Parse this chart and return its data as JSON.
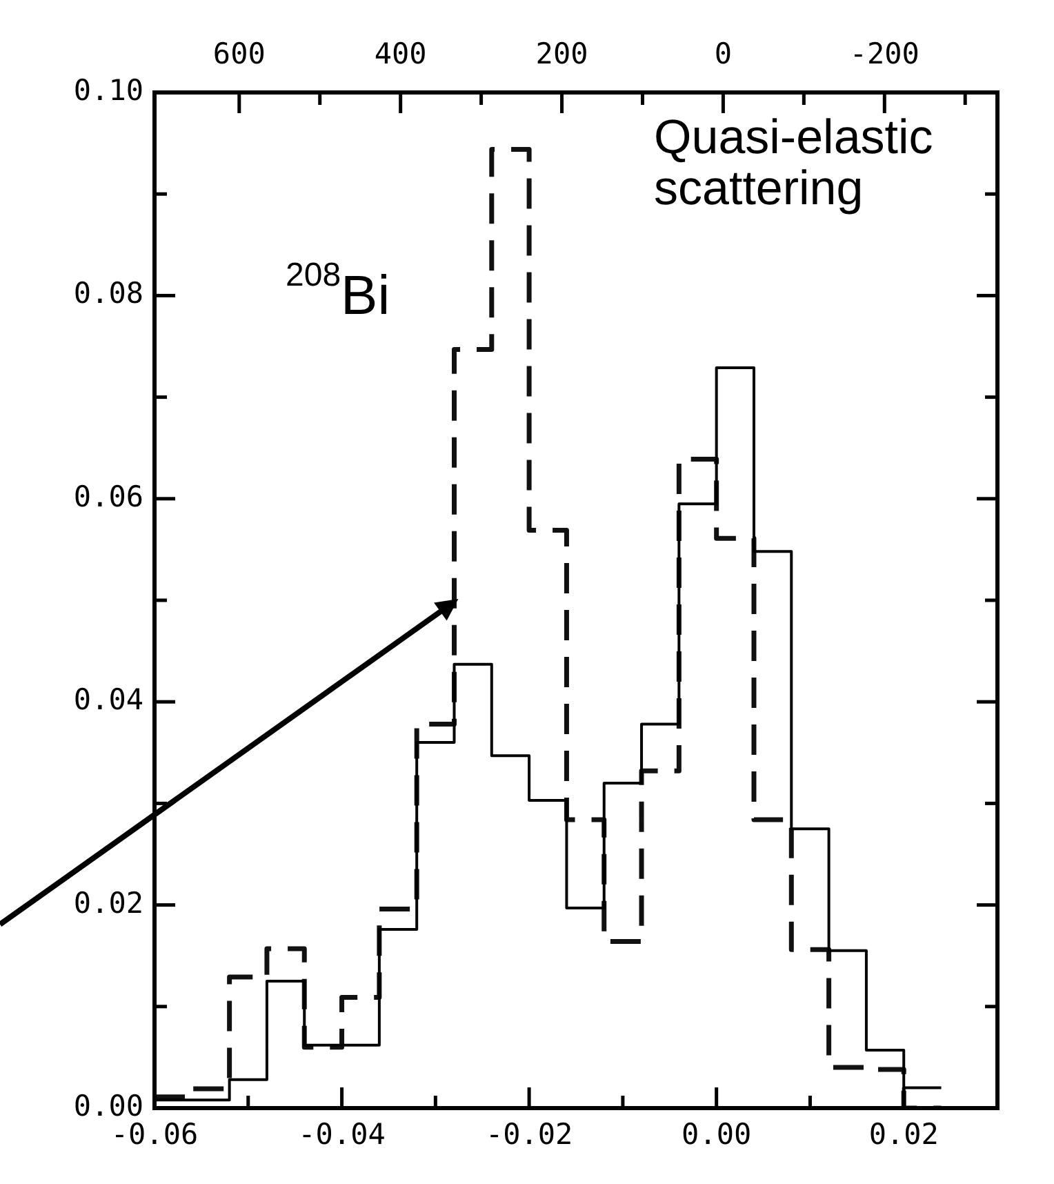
{
  "chart_data": {
    "type": "histogram",
    "bins": [
      -0.06,
      -0.056,
      -0.052,
      -0.048,
      -0.044,
      -0.04,
      -0.036,
      -0.032,
      -0.028,
      -0.024,
      -0.02,
      -0.016,
      -0.012,
      -0.008,
      -0.004,
      0.0,
      0.004,
      0.008,
      0.012,
      0.016,
      0.02,
      0.024
    ],
    "series": [
      {
        "color": "#000000",
        "line_style": "solid",
        "values": [
          0.0008,
          0.0008,
          0.0028,
          0.0125,
          0.0062,
          0.0062,
          0.0176,
          0.036,
          0.0437,
          0.0347,
          0.0303,
          0.0197,
          0.032,
          0.0378,
          0.0595,
          0.0729,
          0.0548,
          0.0275,
          0.0155,
          0.0057,
          0.002
        ]
      },
      {
        "color": "#111111",
        "line_style": "dashed",
        "values": [
          0.0011,
          0.0019,
          0.0129,
          0.0157,
          0.006,
          0.0109,
          0.0196,
          0.0378,
          0.0747,
          0.0944,
          0.0569,
          0.0284,
          0.0164,
          0.0332,
          0.0639,
          0.0561,
          0.0284,
          0.0156,
          0.004,
          0.0038,
          0.0
        ]
      }
    ],
    "xlim": [
      -0.06,
      0.03
    ],
    "xticks": [
      -0.06,
      {
        "value": -0.05,
        "label": null
      },
      -0.04,
      {
        "value": -0.03,
        "label": null
      },
      -0.02,
      {
        "value": -0.01,
        "label": null
      },
      {
        "value": 0,
        "label": "0.00"
      },
      {
        "value": 0.01,
        "label": null
      },
      0.02
    ],
    "x2lim": [
      705,
      -340
    ],
    "x2ticks": [
      600,
      {
        "value": 500,
        "label": null
      },
      400,
      {
        "value": 300,
        "label": null
      },
      200,
      {
        "value": 100,
        "label": null
      },
      0,
      {
        "value": -100,
        "label": null
      },
      -200,
      {
        "value": -300,
        "label": null
      }
    ],
    "ylim": [
      0,
      0.1
    ],
    "yticks": [
      {
        "value": 0,
        "label": "0.00"
      },
      {
        "value": 0.01,
        "label": null
      },
      {
        "value": 0.02,
        "label": "0.02"
      },
      {
        "value": 0.03,
        "label": null
      },
      {
        "value": 0.04,
        "label": "0.04"
      },
      {
        "value": 0.05,
        "label": null
      },
      {
        "value": 0.06,
        "label": "0.06"
      },
      {
        "value": 0.07,
        "label": null
      },
      {
        "value": 0.08,
        "label": "0.08"
      },
      {
        "value": 0.09,
        "label": null
      },
      {
        "value": 0.1,
        "label": "0.10"
      }
    ],
    "annotations": [
      "$^{208}$Bi",
      "Quasi-elastic scattering"
    ],
    "grid": false,
    "legend": false
  }
}
